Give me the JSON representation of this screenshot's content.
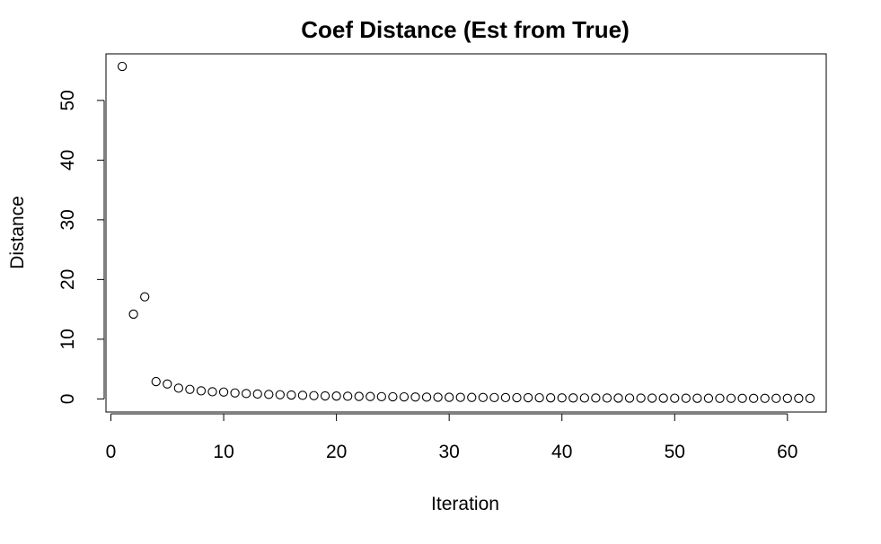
{
  "chart_data": {
    "type": "scatter",
    "title": "Coef Distance (Est from True)",
    "xlabel": "Iteration",
    "ylabel": "Distance",
    "xlim": [
      -0.44,
      63.44
    ],
    "ylim": [
      -2.2,
      57.8
    ],
    "xticks": [
      0,
      10,
      20,
      30,
      40,
      50,
      60
    ],
    "xtick_labels": [
      "0",
      "10",
      "20",
      "30",
      "40",
      "50",
      "60"
    ],
    "yticks": [
      0,
      10,
      20,
      30,
      40,
      50
    ],
    "ytick_labels": [
      "0",
      "10",
      "20",
      "30",
      "40",
      "50"
    ],
    "marker": "open-circle",
    "grid": false,
    "legend": "none",
    "x": [
      1,
      2,
      3,
      4,
      5,
      6,
      7,
      8,
      9,
      10,
      11,
      12,
      13,
      14,
      15,
      16,
      17,
      18,
      19,
      20,
      21,
      22,
      23,
      24,
      25,
      26,
      27,
      28,
      29,
      30,
      31,
      32,
      33,
      34,
      35,
      36,
      37,
      38,
      39,
      40,
      41,
      42,
      43,
      44,
      45,
      46,
      47,
      48,
      49,
      50,
      51,
      52,
      53,
      54,
      55,
      56,
      57,
      58,
      59,
      60,
      61,
      62
    ],
    "y": [
      55.7,
      14.2,
      17.1,
      2.9,
      2.5,
      1.8,
      1.6,
      1.35,
      1.2,
      1.15,
      1.0,
      0.9,
      0.82,
      0.75,
      0.7,
      0.65,
      0.6,
      0.55,
      0.5,
      0.48,
      0.45,
      0.42,
      0.4,
      0.38,
      0.36,
      0.34,
      0.32,
      0.3,
      0.28,
      0.27,
      0.26,
      0.25,
      0.24,
      0.23,
      0.22,
      0.21,
      0.2,
      0.19,
      0.18,
      0.17,
      0.16,
      0.155,
      0.15,
      0.145,
      0.14,
      0.135,
      0.13,
      0.125,
      0.12,
      0.115,
      0.11,
      0.105,
      0.1,
      0.098,
      0.096,
      0.094,
      0.092,
      0.09,
      0.088,
      0.086,
      0.084,
      0.082
    ]
  }
}
